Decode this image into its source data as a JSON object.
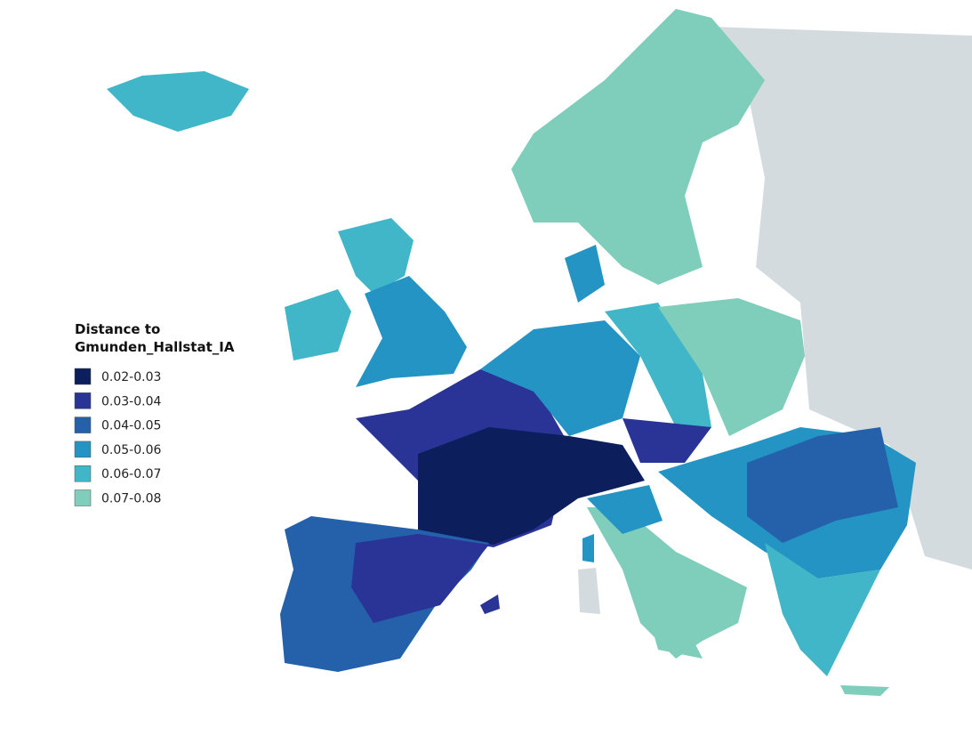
{
  "legend": {
    "title": [
      "Distance to",
      "Gmunden_Hallstat_IA"
    ],
    "items": [
      {
        "label": "0.02-0.03",
        "color": "#0c1e5b"
      },
      {
        "label": "0.03-0.04",
        "color": "#2a3497"
      },
      {
        "label": "0.04-0.05",
        "color": "#2561ab"
      },
      {
        "label": "0.05-0.06",
        "color": "#2394c3"
      },
      {
        "label": "0.06-0.07",
        "color": "#41b6c8"
      },
      {
        "label": "0.07-0.08",
        "color": "#7fcdbb"
      }
    ]
  }
}
